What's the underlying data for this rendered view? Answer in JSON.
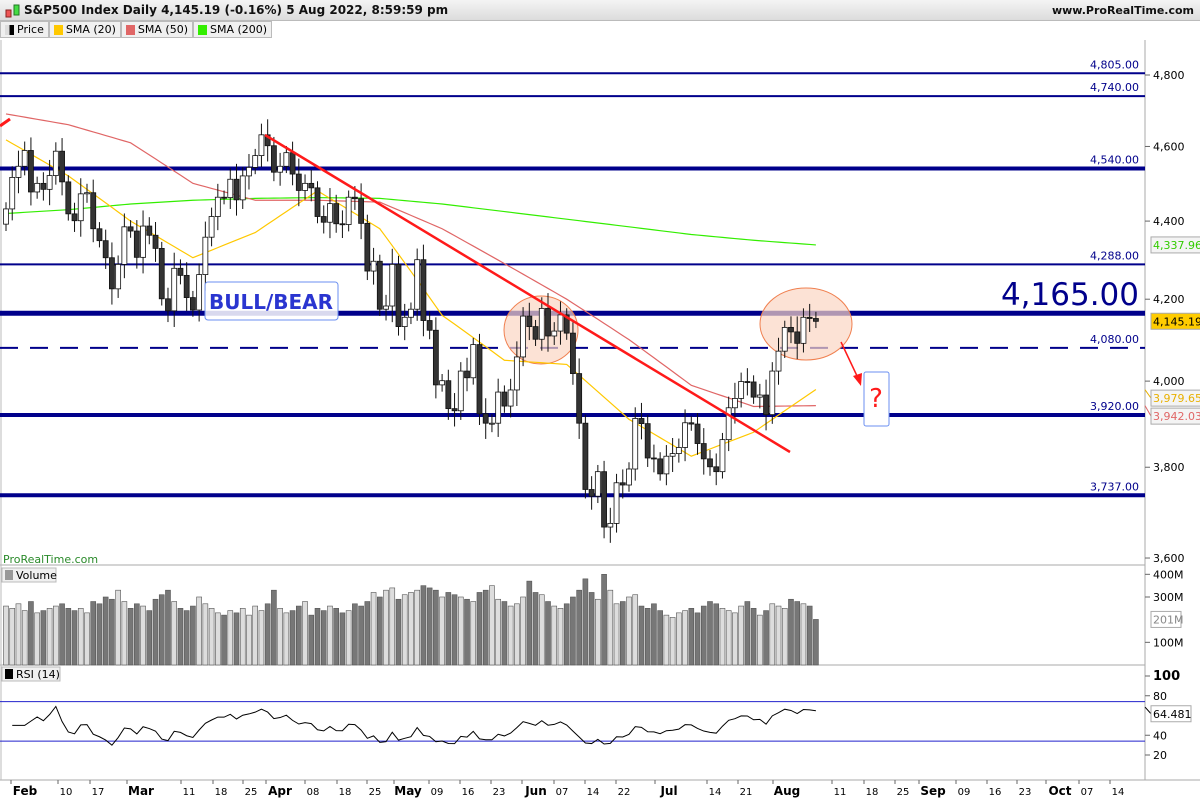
{
  "header": {
    "title": "S&P500 Index Daily 4,145.19 (-0.16%) 5 Aug 2022, 8:59:59 pm",
    "site": "www.ProRealTime.com"
  },
  "legend": [
    {
      "label": "Price",
      "color": "#000000"
    },
    {
      "label": "SMA (20)",
      "color": "#ffc800"
    },
    {
      "label": "SMA (50)",
      "color": "#e06666"
    },
    {
      "label": "SMA (200)",
      "color": "#33ee00"
    }
  ],
  "watermark": "ProRealTime.com",
  "volume_label": "Volume",
  "rsi_label": "RSI (14)",
  "annotation": "BULL/BEAR",
  "big_level": "4,165.00",
  "question": "?",
  "chart_data": {
    "type": "candlestick",
    "scale": "log",
    "ylim": [
      3600,
      4900
    ],
    "yticks": [
      "4,800",
      "4,600",
      "4,400",
      "4,200",
      "4,000",
      "3,800",
      "3,600"
    ],
    "yticks_values": [
      4800,
      4600,
      4400,
      4200,
      4000,
      3800,
      3600
    ],
    "xticks": [
      "Feb",
      "10",
      "17",
      "Mar",
      "11",
      "18",
      "25",
      "Apr",
      "08",
      "18",
      "25",
      "May",
      "09",
      "16",
      "23",
      "Jun",
      "07",
      "14",
      "22",
      "Jul",
      "14",
      "21",
      "Aug",
      "11",
      "18",
      "25",
      "Sep",
      "09",
      "16",
      "23",
      "Oct",
      "07",
      "14"
    ],
    "close": [
      4432,
      4516,
      4546,
      4589,
      4477,
      4500,
      4484,
      4521,
      4587,
      4504,
      4419,
      4401,
      4472,
      4475,
      4380,
      4349,
      4305,
      4226,
      4288,
      4385,
      4374,
      4306,
      4387,
      4363,
      4329,
      4201,
      4171,
      4278,
      4260,
      4204,
      4173,
      4262,
      4358,
      4412,
      4463,
      4462,
      4511,
      4456,
      4520,
      4543,
      4575,
      4632,
      4602,
      4530,
      4546,
      4583,
      4525,
      4481,
      4500,
      4488,
      4412,
      4397,
      4446,
      4393,
      4391,
      4463,
      4459,
      4394,
      4271,
      4296,
      4175,
      4183,
      4288,
      4132,
      4155,
      4175,
      4300,
      4147,
      4123,
      3991,
      4001,
      3935,
      3930,
      4024,
      4008,
      4088,
      3923,
      3901,
      3901,
      3974,
      3941,
      3979,
      4058,
      4158,
      4132,
      4101,
      4177,
      4109,
      4121,
      4161,
      4116,
      4018,
      3901,
      3750,
      3735,
      3790,
      3667,
      3675,
      3765,
      3760,
      3796,
      3912,
      3900,
      3821,
      3819,
      3785,
      3825,
      3831,
      3845,
      3902,
      3899,
      3854,
      3819,
      3801,
      3790,
      3863,
      3937,
      3959,
      3999,
      3998,
      3962,
      3967,
      3921,
      4024,
      4072,
      4130,
      4119,
      4091,
      4155,
      4152,
      4145
    ],
    "sma20_every10": [
      4618,
      4520,
      4400,
      4305,
      4370,
      4480,
      4380,
      4160,
      4050,
      4040,
      3910,
      3825,
      3880,
      3980
    ],
    "sma50_every10": [
      4690,
      4660,
      4610,
      4500,
      4455,
      4455,
      4450,
      4380,
      4290,
      4200,
      4100,
      3990,
      3940,
      3942
    ],
    "sma200_every10": [
      4420,
      4430,
      4445,
      4455,
      4460,
      4462,
      4460,
      4445,
      4425,
      4405,
      4385,
      4365,
      4350,
      4338
    ],
    "last": {
      "price": "4,145.19",
      "sma20": "3,979.65",
      "sma50": "3,942.03",
      "sma200": "4,337.96",
      "volume": "201M",
      "rsi": "64.481"
    },
    "levels": [
      {
        "value": 4805,
        "label": "4,805.00",
        "style": "thin"
      },
      {
        "value": 4740,
        "label": "4,740.00",
        "style": "thin"
      },
      {
        "value": 4540,
        "label": "4,540.00",
        "style": "thick"
      },
      {
        "value": 4288,
        "label": "4,288.00",
        "style": "thin"
      },
      {
        "value": 4165,
        "label": "",
        "style": "thick"
      },
      {
        "value": 4080,
        "label": "4,080.00",
        "style": "dashed"
      },
      {
        "value": 3920,
        "label": "3,920.00",
        "style": "thick"
      },
      {
        "value": 3737,
        "label": "3,737.00",
        "style": "thick"
      }
    ],
    "volume_millions": [
      260,
      250,
      270,
      240,
      280,
      230,
      240,
      250,
      260,
      270,
      250,
      240,
      250,
      230,
      280,
      270,
      300,
      290,
      330,
      280,
      250,
      270,
      260,
      240,
      290,
      310,
      330,
      280,
      250,
      240,
      260,
      300,
      270,
      250,
      230,
      220,
      240,
      230,
      250,
      220,
      260,
      240,
      270,
      330,
      250,
      230,
      240,
      260,
      280,
      220,
      250,
      240,
      260,
      250,
      230,
      240,
      270,
      260,
      280,
      320,
      300,
      330,
      340,
      290,
      310,
      320,
      330,
      350,
      340,
      330,
      300,
      320,
      310,
      300,
      290,
      280,
      320,
      330,
      350,
      290,
      280,
      260,
      270,
      300,
      370,
      320,
      310,
      280,
      260,
      250,
      270,
      300,
      330,
      380,
      320,
      290,
      400,
      330,
      270,
      280,
      300,
      310,
      260,
      250,
      270,
      240,
      220,
      210,
      230,
      240,
      250,
      230,
      260,
      280,
      270,
      250,
      240,
      230,
      260,
      280,
      250,
      220,
      240,
      270,
      260,
      250,
      290,
      280,
      270,
      260,
      201
    ],
    "volume_ticks": [
      "400M",
      "300M",
      "100M"
    ],
    "rsi_ticks": [
      "100",
      "80",
      "40",
      "20"
    ],
    "rsi_levels": [
      70,
      30
    ]
  },
  "colors": {
    "level": "#00008b",
    "trend": "#ff1a1a",
    "ellipse": "#fbd5c3",
    "sma20": "#ffc800",
    "sma50": "#e06666",
    "sma200": "#33ee00"
  }
}
